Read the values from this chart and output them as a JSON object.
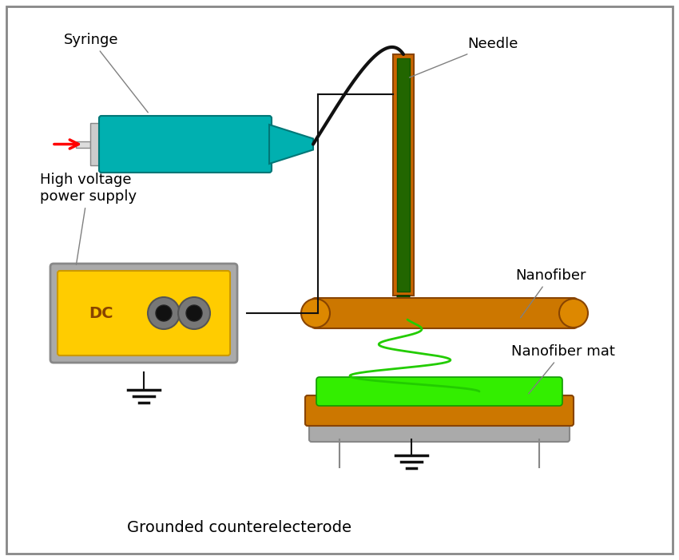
{
  "bg_color": "#ffffff",
  "border_color": "#888888",
  "syringe_color": "#00b0b0",
  "syringe_edge": "#007777",
  "needle_outer_color": "#cc6600",
  "needle_inner_color": "#226600",
  "needle_edge": "#884400",
  "roller_color": "#cc7700",
  "roller_edge": "#884400",
  "nanofiber_color": "#22cc00",
  "power_supply_yellow": "#ffcc00",
  "power_supply_gray": "#aaaaaa",
  "power_supply_edge": "#888888",
  "wire_color": "#111111",
  "ground_color": "#111111",
  "label_syringe": "Syringe",
  "label_needle": "Needle",
  "label_nanofiber": "Nanofiber",
  "label_nanofiber_mat": "Nanofiber mat",
  "label_power_supply": "High voltage\npower supply",
  "label_counter_electrode": "Grounded counterelecterode",
  "label_dc": "DC",
  "font_size": 13
}
